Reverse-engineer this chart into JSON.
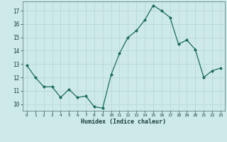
{
  "x": [
    0,
    1,
    2,
    3,
    4,
    5,
    6,
    7,
    8,
    9,
    10,
    11,
    12,
    13,
    14,
    15,
    16,
    17,
    18,
    19,
    20,
    21,
    22,
    23
  ],
  "y": [
    12.9,
    12.0,
    11.3,
    11.3,
    10.5,
    11.1,
    10.5,
    10.6,
    9.8,
    9.7,
    12.2,
    13.8,
    15.0,
    15.5,
    16.3,
    17.4,
    17.0,
    16.5,
    14.5,
    14.8,
    14.1,
    12.0,
    12.5,
    12.7
  ],
  "line_color": "#1a6b5a",
  "marker": "D",
  "marker_size": 2.0,
  "bg_color": "#ceeae8",
  "grid_color": "#b8d8d5",
  "xlabel": "Humidex (Indice chaleur)",
  "ylabel_ticks": [
    10,
    11,
    12,
    13,
    14,
    15,
    16,
    17
  ],
  "ylim": [
    9.5,
    17.7
  ],
  "xlim": [
    -0.5,
    23.5
  ],
  "tick_label_color": "#1a4040",
  "xlabel_color": "#1a4040"
}
